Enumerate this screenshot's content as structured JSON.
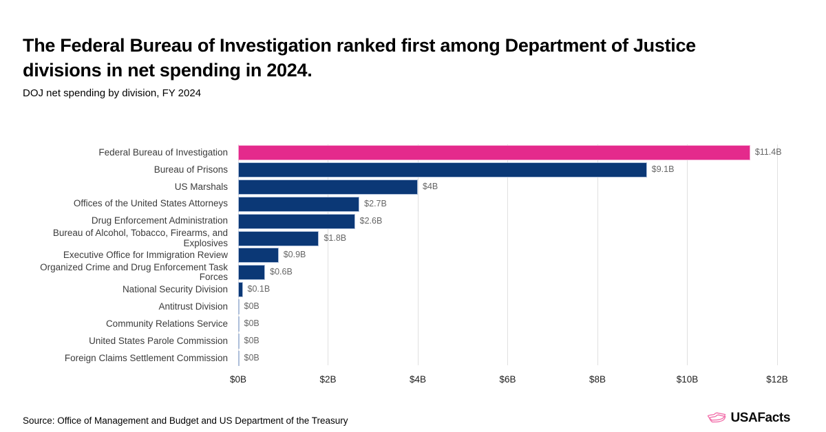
{
  "header": {
    "title": "The Federal Bureau of Investigation ranked first among Department of Justice divisions in net spending in 2024.",
    "subtitle": "DOJ net spending by division, FY 2024"
  },
  "chart_data": {
    "type": "bar",
    "orientation": "horizontal",
    "title": "DOJ net spending by division, FY 2024",
    "categories": [
      "Federal Bureau of Investigation",
      "Bureau of Prisons",
      "US Marshals",
      "Offices of the United States Attorneys",
      "Drug Enforcement Administration",
      "Bureau of Alcohol, Tobacco, Firearms, and Explosives",
      "Executive Office for Immigration Review",
      "Organized Crime and Drug Enforcement Task Forces",
      "National Security Division",
      "Antitrust Division",
      "Community Relations Service",
      "United States Parole Commission",
      "Foreign Claims Settlement Commission"
    ],
    "values": [
      11.4,
      9.1,
      4,
      2.7,
      2.6,
      1.8,
      0.9,
      0.6,
      0.1,
      0,
      0,
      0,
      0
    ],
    "value_labels": [
      "$11.4B",
      "$9.1B",
      "$4B",
      "$2.7B",
      "$2.6B",
      "$1.8B",
      "$0.9B",
      "$0.6B",
      "$0.1B",
      "$0B",
      "$0B",
      "$0B",
      "$0B"
    ],
    "units": "billions of US dollars",
    "x_ticks": [
      "$0B",
      "$2B",
      "$4B",
      "$6B",
      "$8B",
      "$10B",
      "$12B"
    ],
    "x_tick_values": [
      0,
      2,
      4,
      6,
      8,
      10,
      12
    ],
    "xlim": [
      0,
      12
    ],
    "grid": true,
    "highlight_index": 0,
    "legend": "none"
  },
  "colors": {
    "highlight_pink": "#E42A8C",
    "bar_navy": "#0B3876",
    "highlight_border": "#F5A8D2",
    "bar_border": "#AEBFDA",
    "gridline": "#E0E0E0",
    "logo_pink": "#F272AC"
  },
  "footer": {
    "source": "Source: Office of Management and Budget and US Department of the Treasury",
    "logo_text": "USAFacts"
  }
}
